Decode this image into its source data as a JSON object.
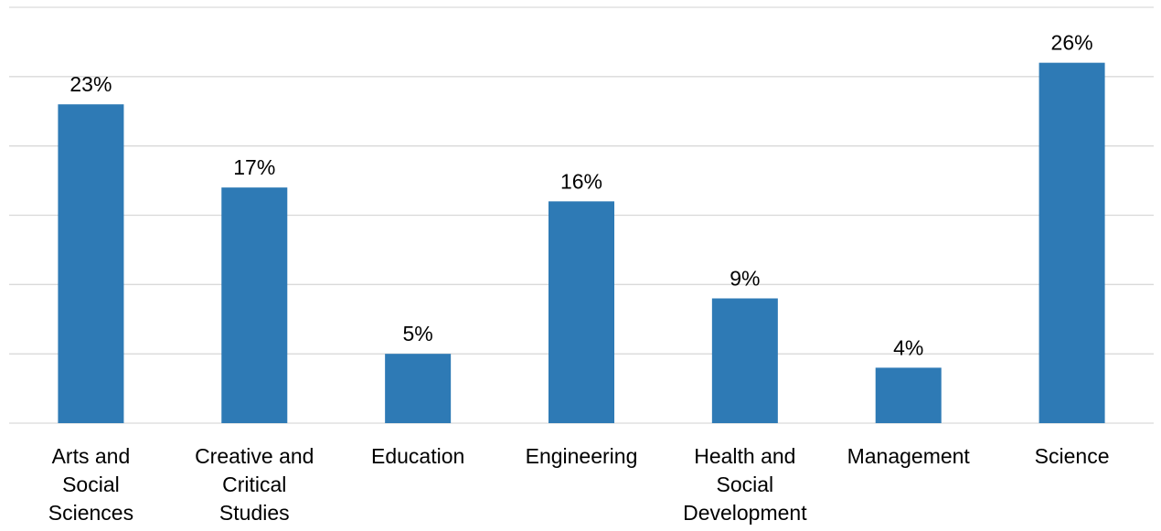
{
  "chart_data": {
    "type": "bar",
    "title": "",
    "xlabel": "",
    "ylabel": "",
    "categories": [
      "Arts and Social Sciences",
      "Creative and Critical Studies",
      "Education",
      "Engineering",
      "Health and Social Development",
      "Management",
      "Science"
    ],
    "category_label_lines": [
      [
        "Arts and",
        "Social",
        "Sciences"
      ],
      [
        "Creative and",
        "Critical",
        "Studies"
      ],
      [
        "Education"
      ],
      [
        "Engineering"
      ],
      [
        "Health and",
        "Social",
        "Development"
      ],
      [
        "Management"
      ],
      [
        "Science"
      ]
    ],
    "series": [
      {
        "values": [
          23,
          17,
          5,
          16,
          9,
          4,
          26
        ],
        "data_labels": [
          "23%",
          "17%",
          "5%",
          "16%",
          "9%",
          "4%",
          "26%"
        ]
      }
    ],
    "ylim": [
      0,
      30
    ],
    "ytick_step": 5,
    "grid": true,
    "legend": "none",
    "colors": {
      "bar": "#2e7ab5",
      "grid": "#d9d9d9",
      "text": "#000000"
    }
  }
}
